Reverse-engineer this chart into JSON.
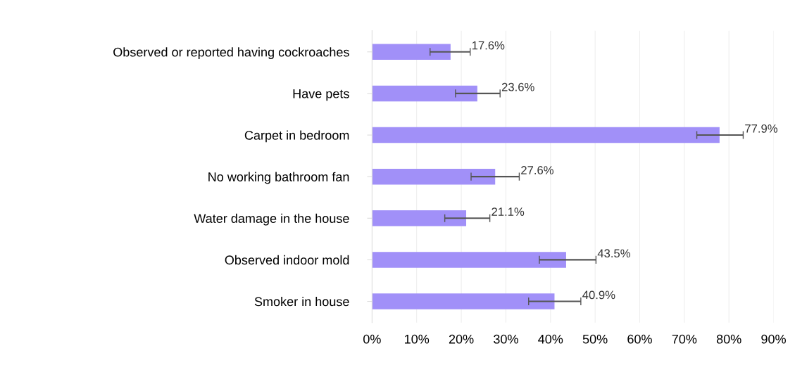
{
  "chart_data": {
    "type": "bar",
    "orientation": "horizontal",
    "categories": [
      "Observed or reported having cockroaches",
      "Have pets",
      "Carpet in bedroom",
      "No working bathroom fan",
      "Water damage in the house",
      "Observed indoor mold",
      "Smoker in house"
    ],
    "values": [
      17.6,
      23.6,
      77.9,
      27.6,
      21.1,
      43.5,
      40.9
    ],
    "errors": [
      [
        13.0,
        22.0
      ],
      [
        18.7,
        28.7
      ],
      [
        72.8,
        83.2
      ],
      [
        22.2,
        33.0
      ],
      [
        16.3,
        26.4
      ],
      [
        37.5,
        50.2
      ],
      [
        35.1,
        46.8
      ]
    ],
    "value_labels": [
      "17.6%",
      "23.6%",
      "77.9%",
      "27.6%",
      "21.1%",
      "43.5%",
      "40.9%"
    ],
    "color": "#a190f8",
    "xlim": [
      0,
      90
    ],
    "xticks": [
      {
        "value": 0,
        "label": "0%"
      },
      {
        "value": 10,
        "label": "10%"
      },
      {
        "value": 20,
        "label": "20%"
      },
      {
        "value": 30,
        "label": "30%"
      },
      {
        "value": 40,
        "label": "40%"
      },
      {
        "value": 50,
        "label": "50%"
      },
      {
        "value": 60,
        "label": "60%"
      },
      {
        "value": 70,
        "label": "70%"
      },
      {
        "value": 80,
        "label": "80%"
      },
      {
        "value": 90,
        "label": "90%"
      }
    ],
    "grid": "x"
  }
}
